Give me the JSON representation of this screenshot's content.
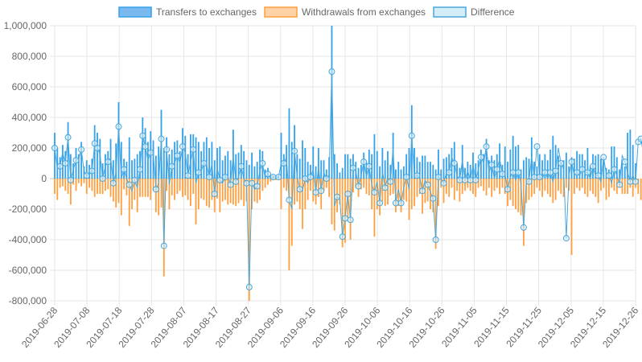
{
  "chart_data": {
    "type": "bar",
    "title": "",
    "xlabel": "",
    "ylabel": "",
    "ylim": [
      -800000,
      1000000
    ],
    "y_ticks": [
      -800000,
      -600000,
      -400000,
      -200000,
      0,
      200000,
      400000,
      600000,
      800000,
      1000000
    ],
    "y_tick_labels": [
      "-800,000",
      "-600,000",
      "-400,000",
      "-200,000",
      "0",
      "200,000",
      "400,000",
      "600,000",
      "800,000",
      "1,000,000"
    ],
    "x_tick_labels": [
      "2019-06-28",
      "2019-07-08",
      "2019-07-18",
      "2019-07-28",
      "2019-08-07",
      "2019-08-17",
      "2019-08-27",
      "2019-09-06",
      "2019-09-16",
      "2019-09-26",
      "2019-10-06",
      "2019-10-16",
      "2019-10-26",
      "2019-11-05",
      "2019-11-15",
      "2019-11-25",
      "2019-12-05",
      "2019-12-15",
      "2019-12-26"
    ],
    "grid": true,
    "legend_position": "top",
    "colors": {
      "transfers": "#36a2eb",
      "transfers_fill": "#7ab8f0",
      "withdrawals": "#ff9f40",
      "withdrawals_fill": "#ffd1a6",
      "difference": "#4aa8d8",
      "difference_fill": "#d4ebf8",
      "grid": "#e6e6e6",
      "text": "#666666"
    },
    "series": [
      {
        "name": "Transfers to exchanges",
        "type": "bar",
        "values": [
          300000,
          200000,
          140000,
          220000,
          180000,
          370000,
          160000,
          100000,
          200000,
          160000,
          240000,
          80000,
          120000,
          90000,
          130000,
          350000,
          300000,
          260000,
          100000,
          160000,
          180000,
          260000,
          120000,
          230000,
          500000,
          240000,
          130000,
          110000,
          270000,
          120000,
          130000,
          160000,
          180000,
          400000,
          330000,
          240000,
          310000,
          250000,
          150000,
          210000,
          450000,
          200000,
          270000,
          160000,
          190000,
          240000,
          250000,
          180000,
          330000,
          280000,
          160000,
          290000,
          290000,
          270000,
          240000,
          180000,
          240000,
          270000,
          200000,
          240000,
          120000,
          200000,
          210000,
          120000,
          150000,
          180000,
          120000,
          320000,
          160000,
          170000,
          220000,
          180000,
          120000,
          90000,
          170000,
          80000,
          110000,
          190000,
          180000,
          60000,
          70000,
          20000,
          20000,
          20000,
          20000,
          300000,
          160000,
          220000,
          460000,
          240000,
          350000,
          160000,
          130000,
          250000,
          200000,
          110000,
          90000,
          210000,
          80000,
          200000,
          120000,
          120000,
          60000,
          140000,
          1000000,
          160000,
          100000,
          40000,
          70000,
          160000,
          160000,
          130000,
          160000,
          110000,
          70000,
          90000,
          170000,
          110000,
          190000,
          160000,
          290000,
          180000,
          80000,
          200000,
          120000,
          180000,
          90000,
          300000,
          60000,
          110000,
          60000,
          80000,
          160000,
          200000,
          480000,
          200000,
          140000,
          110000,
          150000,
          150000,
          110000,
          110000,
          90000,
          60000,
          190000,
          60000,
          130000,
          140000,
          160000,
          200000,
          240000,
          100000,
          70000,
          220000,
          70000,
          110000,
          90000,
          170000,
          100000,
          120000,
          190000,
          160000,
          260000,
          120000,
          150000,
          120000,
          160000,
          230000,
          90000,
          210000,
          110000,
          190000,
          280000,
          210000,
          220000,
          60000,
          120000,
          140000,
          130000,
          270000,
          110000,
          80000,
          160000,
          120000,
          160000,
          120000,
          190000,
          280000,
          220000,
          150000,
          110000,
          120000,
          170000,
          80000,
          140000,
          130000,
          180000,
          160000,
          160000,
          120000,
          200000,
          80000,
          160000,
          150000,
          160000,
          130000,
          120000,
          70000,
          60000,
          210000,
          210000,
          140000,
          60000,
          120000,
          80000,
          300000,
          320000,
          220000,
          100000
        ]
      },
      {
        "name": "Withdrawals from exchanges",
        "type": "bar",
        "values": [
          -100000,
          -140000,
          -60000,
          -50000,
          -80000,
          -100000,
          -170000,
          -40000,
          -80000,
          -30000,
          -50000,
          -30000,
          -100000,
          -60000,
          -80000,
          -120000,
          -100000,
          -100000,
          -100000,
          -80000,
          -70000,
          -120000,
          -150000,
          -190000,
          -160000,
          -240000,
          -70000,
          -110000,
          -310000,
          -200000,
          -140000,
          -220000,
          -120000,
          -120000,
          -120000,
          -120000,
          -140000,
          -80000,
          -220000,
          -240000,
          -190000,
          -640000,
          -80000,
          -200000,
          -110000,
          -140000,
          -100000,
          -80000,
          -120000,
          -110000,
          -140000,
          -180000,
          -100000,
          -300000,
          -200000,
          -130000,
          -140000,
          -180000,
          -190000,
          -140000,
          -220000,
          -130000,
          -220000,
          -150000,
          -140000,
          -170000,
          -160000,
          -170000,
          -180000,
          -160000,
          -140000,
          -180000,
          -150000,
          -800000,
          -200000,
          -150000,
          -160000,
          -140000,
          -80000,
          -60000,
          -40000,
          -20000,
          -10000,
          -10000,
          -10000,
          -200000,
          -60000,
          -80000,
          -600000,
          -440000,
          -170000,
          -150000,
          -200000,
          -330000,
          -200000,
          -140000,
          -80000,
          -150000,
          -170000,
          -120000,
          -200000,
          -80000,
          -60000,
          -120000,
          -300000,
          -340000,
          -220000,
          -170000,
          -450000,
          -420000,
          -260000,
          -400000,
          -90000,
          -60000,
          -120000,
          -70000,
          -60000,
          -100000,
          -110000,
          -200000,
          -380000,
          -200000,
          -240000,
          -150000,
          -180000,
          -170000,
          -110000,
          -100000,
          -220000,
          -180000,
          -220000,
          -140000,
          -150000,
          -270000,
          -200000,
          -180000,
          -120000,
          -100000,
          -230000,
          -160000,
          -150000,
          -200000,
          -220000,
          -460000,
          -180000,
          -60000,
          -160000,
          -100000,
          -120000,
          -60000,
          -140000,
          -80000,
          -150000,
          -100000,
          -80000,
          -60000,
          -80000,
          -100000,
          -120000,
          -60000,
          -50000,
          -80000,
          -110000,
          -60000,
          -120000,
          -80000,
          -60000,
          -100000,
          -60000,
          -100000,
          -180000,
          -140000,
          -180000,
          -200000,
          -220000,
          -240000,
          -440000,
          -160000,
          -140000,
          -120000,
          -100000,
          -60000,
          -80000,
          -120000,
          -80000,
          -100000,
          -120000,
          -160000,
          -140000,
          -80000,
          -100000,
          -120000,
          -60000,
          -80000,
          -500000,
          -100000,
          -60000,
          -80000,
          -60000,
          -100000,
          -120000,
          -80000,
          -100000,
          -120000,
          -160000,
          -80000,
          -60000,
          -140000,
          -120000,
          -60000,
          -80000,
          -100000,
          -60000,
          -100000,
          -100000,
          -100000,
          -60000,
          -120000,
          -60000,
          -100000,
          -140000,
          -60000,
          -50000,
          -60000
        ]
      },
      {
        "name": "Difference",
        "type": "line",
        "values": [
          200000,
          60000,
          80000,
          170000,
          100000,
          270000,
          -10000,
          60000,
          120000,
          130000,
          190000,
          50000,
          20000,
          30000,
          50000,
          230000,
          200000,
          160000,
          0,
          80000,
          110000,
          140000,
          -30000,
          40000,
          340000,
          0,
          60000,
          0,
          -40000,
          -80000,
          -10000,
          -60000,
          60000,
          280000,
          210000,
          120000,
          170000,
          170000,
          -70000,
          -30000,
          260000,
          -440000,
          190000,
          -40000,
          80000,
          100000,
          150000,
          100000,
          210000,
          170000,
          20000,
          110000,
          190000,
          -30000,
          40000,
          50000,
          100000,
          90000,
          10000,
          100000,
          -100000,
          70000,
          -10000,
          -30000,
          10000,
          10000,
          -40000,
          150000,
          -20000,
          10000,
          80000,
          0,
          -30000,
          -710000,
          -30000,
          -70000,
          -50000,
          50000,
          100000,
          0,
          30000,
          0,
          10000,
          10000,
          10000,
          100000,
          100000,
          140000,
          -140000,
          -200000,
          180000,
          10000,
          -70000,
          -80000,
          0,
          -30000,
          10000,
          60000,
          -90000,
          80000,
          -80000,
          40000,
          0,
          20000,
          700000,
          -180000,
          -120000,
          -130000,
          -380000,
          -260000,
          -100000,
          -270000,
          70000,
          50000,
          -50000,
          20000,
          110000,
          10000,
          80000,
          -40000,
          -90000,
          -20000,
          -160000,
          50000,
          -60000,
          10000,
          -20000,
          200000,
          -160000,
          -70000,
          -160000,
          -60000,
          10000,
          -70000,
          280000,
          20000,
          20000,
          10000,
          -80000,
          -10000,
          -40000,
          -90000,
          -130000,
          -400000,
          10000,
          0,
          -30000,
          40000,
          40000,
          140000,
          100000,
          20000,
          -10000,
          120000,
          -10000,
          50000,
          -10000,
          90000,
          -10000,
          60000,
          140000,
          100000,
          210000,
          40000,
          90000,
          0,
          60000,
          130000,
          30000,
          30000,
          -70000,
          10000,
          40000,
          -10000,
          40000,
          -30000,
          -320000,
          -20000,
          -20000,
          140000,
          10000,
          210000,
          10000,
          0,
          40000,
          0,
          40000,
          -20000,
          50000,
          200000,
          100000,
          60000,
          -390000,
          20000,
          110000,
          20000,
          40000,
          20000,
          60000,
          40000,
          40000,
          0,
          80000,
          20000,
          20000,
          -20000,
          140000,
          30000,
          20000,
          -30000,
          60000,
          20000,
          -40000,
          150000,
          110000,
          40000,
          -20000,
          20000,
          -20000,
          240000,
          260000,
          160000,
          50000
        ]
      }
    ]
  }
}
